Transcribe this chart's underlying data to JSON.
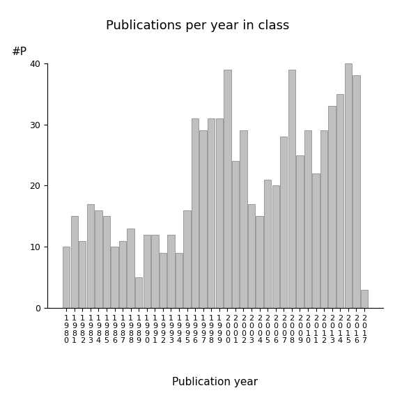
{
  "title": "Publications per year in class",
  "xlabel": "Publication year",
  "ylabel": "#P",
  "bar_color": "#c0c0c0",
  "bar_edgecolor": "#808080",
  "years": [
    "1980",
    "1981",
    "1982",
    "1983",
    "1984",
    "1985",
    "1986",
    "1987",
    "1988",
    "1989",
    "1990",
    "1991",
    "1992",
    "1993",
    "1994",
    "1995",
    "1996",
    "1997",
    "1998",
    "1999",
    "2000",
    "2001",
    "2002",
    "2003",
    "2004",
    "2005",
    "2006",
    "2007",
    "2008",
    "2009",
    "2010",
    "2011",
    "2012",
    "2013",
    "2014",
    "2015",
    "2016",
    "2017"
  ],
  "values": [
    10,
    15,
    11,
    17,
    16,
    15,
    10,
    11,
    13,
    5,
    12,
    12,
    9,
    12,
    9,
    16,
    31,
    29,
    31,
    31,
    39,
    24,
    29,
    17,
    15,
    21,
    20,
    28,
    39,
    25,
    29,
    22,
    29,
    33,
    35,
    40,
    38,
    3
  ],
  "ylim": [
    0,
    40
  ],
  "yticks": [
    0,
    10,
    20,
    30,
    40
  ],
  "background_color": "#ffffff",
  "title_fontsize": 13,
  "tick_fontsize": 8,
  "axis_label_fontsize": 11
}
